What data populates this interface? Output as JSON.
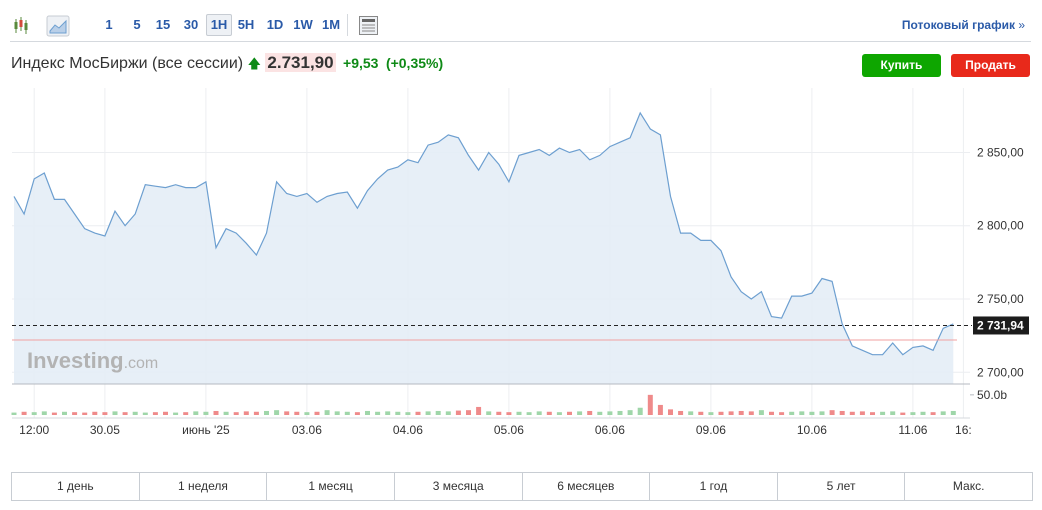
{
  "toolbar": {
    "intervals": [
      "1",
      "5",
      "15",
      "30",
      "1H",
      "5H",
      "1D",
      "1W",
      "1M"
    ],
    "active": "1H",
    "streaming_link": "Потоковый график"
  },
  "header": {
    "title": "Индекс МосБиржи (все сессии)",
    "price": "2.731,90",
    "change": "+9,53",
    "change_pct": "(+0,35%)",
    "buy": "Купить",
    "sell": "Продать"
  },
  "watermark": {
    "brand": "Investing",
    "suffix": ".com"
  },
  "chart_data": {
    "type": "line",
    "color": "#6d9fd0",
    "fill": "#e4edf6",
    "categories": [
      null,
      null,
      "12:00",
      null,
      null,
      null,
      null,
      null,
      null,
      "30.05",
      null,
      null,
      null,
      null,
      null,
      null,
      null,
      null,
      null,
      "июнь '25",
      null,
      null,
      null,
      null,
      null,
      null,
      null,
      null,
      null,
      "03.06",
      null,
      null,
      null,
      null,
      null,
      null,
      null,
      null,
      null,
      "04.06",
      null,
      null,
      null,
      null,
      null,
      null,
      null,
      null,
      null,
      "05.06",
      null,
      null,
      null,
      null,
      null,
      null,
      null,
      null,
      null,
      "06.06",
      null,
      null,
      null,
      null,
      null,
      null,
      null,
      null,
      null,
      "09.06",
      null,
      null,
      null,
      null,
      null,
      null,
      null,
      null,
      null,
      "10.06",
      null,
      null,
      null,
      null,
      null,
      null,
      null,
      null,
      null,
      "11.06",
      null,
      null,
      null,
      null,
      "16:"
    ],
    "values": [
      2820,
      2808,
      2832,
      2836,
      2818,
      2818,
      2808,
      2798,
      2795,
      2793,
      2810,
      2800,
      2808,
      2828,
      2827,
      2826,
      2828,
      2826,
      2826,
      2830,
      2785,
      2798,
      2795,
      2788,
      2780,
      2795,
      2830,
      2822,
      2820,
      2822,
      2816,
      2820,
      2822,
      2823,
      2812,
      2824,
      2832,
      2838,
      2840,
      2845,
      2843,
      2855,
      2857,
      2862,
      2860,
      2848,
      2838,
      2850,
      2842,
      2830,
      2848,
      2850,
      2852,
      2848,
      2853,
      2850,
      2852,
      2845,
      2848,
      2854,
      2857,
      2860,
      2877,
      2866,
      2862,
      2820,
      2795,
      2795,
      2790,
      2790,
      2783,
      2765,
      2755,
      2750,
      2755,
      2738,
      2737,
      2752,
      2752,
      2754,
      2764,
      2762,
      2733,
      2718,
      2715,
      2712,
      2712,
      2720,
      2712,
      2717,
      2718,
      2715,
      2730,
      2733,
      null
    ],
    "ylim": [
      2692,
      2894
    ],
    "yticks": [
      {
        "value": 2700,
        "label": "2 700,00"
      },
      {
        "value": 2750,
        "label": "2 750,00"
      },
      {
        "value": 2800,
        "label": "2 800,00"
      },
      {
        "value": 2850,
        "label": "2 850,00"
      }
    ],
    "grid": true,
    "last_price": {
      "value": 2731.94,
      "label": "2 731,94"
    },
    "previous_close": 2722,
    "volume": {
      "values": [
        6,
        8,
        7,
        9,
        6,
        8,
        7,
        6,
        8,
        7,
        9,
        7,
        8,
        6,
        7,
        8,
        6,
        7,
        9,
        8,
        10,
        8,
        7,
        9,
        8,
        10,
        12,
        9,
        8,
        7,
        8,
        12,
        9,
        8,
        7,
        10,
        8,
        9,
        8,
        7,
        8,
        9,
        10,
        9,
        11,
        12,
        20,
        9,
        8,
        7,
        8,
        7,
        9,
        8,
        7,
        8,
        9,
        10,
        8,
        9,
        10,
        12,
        18,
        50,
        25,
        14,
        10,
        9,
        8,
        7,
        8,
        9,
        10,
        9,
        12,
        8,
        7,
        8,
        9,
        8,
        9,
        12,
        10,
        8,
        9,
        7,
        8,
        9,
        6,
        7,
        8,
        7,
        9,
        10,
        null
      ],
      "ylim": [
        0,
        67
      ],
      "yticks": [
        {
          "value": 50,
          "label": "50.0b"
        }
      ],
      "up_color": "#9fd6a9",
      "down_color": "#ef8a8a"
    }
  },
  "periods": [
    "1 день",
    "1 неделя",
    "1 месяц",
    "3 месяца",
    "6 месяцев",
    "1 год",
    "5 лет",
    "Макс."
  ]
}
